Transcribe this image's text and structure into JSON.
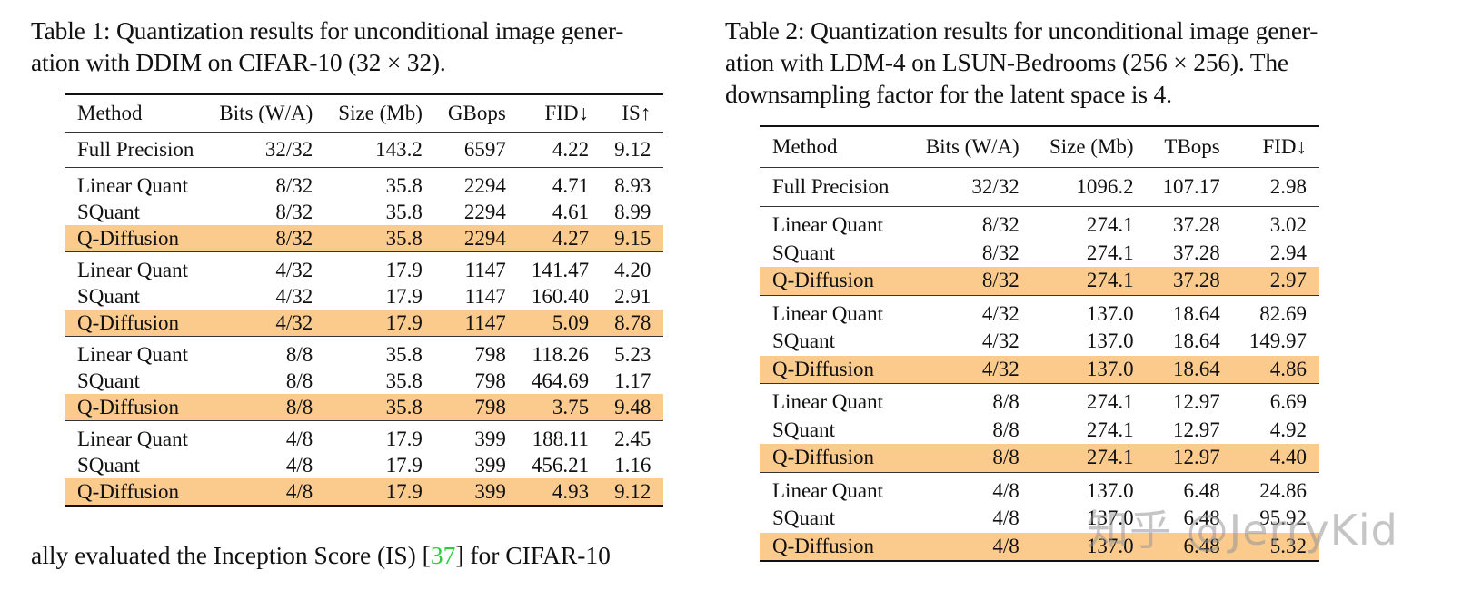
{
  "table1": {
    "caption_lines": [
      "Table 1: Quantization results for unconditional image gener-",
      "ation with DDIM on CIFAR-10 (32 × 32)."
    ],
    "headers": [
      "Method",
      "Bits (W/A)",
      "Size (Mb)",
      "GBops",
      "FID↓",
      "IS↑"
    ],
    "full_precision": [
      "Full Precision",
      "32/32",
      "143.2",
      "6597",
      "4.22",
      "9.12"
    ],
    "groups": [
      [
        [
          "Linear Quant",
          "8/32",
          "35.8",
          "2294",
          "4.71",
          "8.93"
        ],
        [
          "SQuant",
          "8/32",
          "35.8",
          "2294",
          "4.61",
          "8.99"
        ],
        [
          "Q-Diffusion",
          "8/32",
          "35.8",
          "2294",
          "4.27",
          "9.15"
        ]
      ],
      [
        [
          "Linear Quant",
          "4/32",
          "17.9",
          "1147",
          "141.47",
          "4.20"
        ],
        [
          "SQuant",
          "4/32",
          "17.9",
          "1147",
          "160.40",
          "2.91"
        ],
        [
          "Q-Diffusion",
          "4/32",
          "17.9",
          "1147",
          "5.09",
          "8.78"
        ]
      ],
      [
        [
          "Linear Quant",
          "8/8",
          "35.8",
          "798",
          "118.26",
          "5.23"
        ],
        [
          "SQuant",
          "8/8",
          "35.8",
          "798",
          "464.69",
          "1.17"
        ],
        [
          "Q-Diffusion",
          "8/8",
          "35.8",
          "798",
          "3.75",
          "9.48"
        ]
      ],
      [
        [
          "Linear Quant",
          "4/8",
          "17.9",
          "399",
          "188.11",
          "2.45"
        ],
        [
          "SQuant",
          "4/8",
          "17.9",
          "399",
          "456.21",
          "1.16"
        ],
        [
          "Q-Diffusion",
          "4/8",
          "17.9",
          "399",
          "4.93",
          "9.12"
        ]
      ]
    ]
  },
  "table2": {
    "caption_lines": [
      "Table 2: Quantization results for unconditional image gener-",
      "ation with LDM-4 on LSUN-Bedrooms (256 × 256). The",
      "downsampling factor for the latent space is 4."
    ],
    "headers": [
      "Method",
      "Bits (W/A)",
      "Size (Mb)",
      "TBops",
      "FID↓"
    ],
    "full_precision": [
      "Full Precision",
      "32/32",
      "1096.2",
      "107.17",
      "2.98"
    ],
    "groups": [
      [
        [
          "Linear Quant",
          "8/32",
          "274.1",
          "37.28",
          "3.02"
        ],
        [
          "SQuant",
          "8/32",
          "274.1",
          "37.28",
          "2.94"
        ],
        [
          "Q-Diffusion",
          "8/32",
          "274.1",
          "37.28",
          "2.97"
        ]
      ],
      [
        [
          "Linear Quant",
          "4/32",
          "137.0",
          "18.64",
          "82.69"
        ],
        [
          "SQuant",
          "4/32",
          "137.0",
          "18.64",
          "149.97"
        ],
        [
          "Q-Diffusion",
          "4/32",
          "137.0",
          "18.64",
          "4.86"
        ]
      ],
      [
        [
          "Linear Quant",
          "8/8",
          "274.1",
          "12.97",
          "6.69"
        ],
        [
          "SQuant",
          "8/8",
          "274.1",
          "12.97",
          "4.92"
        ],
        [
          "Q-Diffusion",
          "8/8",
          "274.1",
          "12.97",
          "4.40"
        ]
      ],
      [
        [
          "Linear Quant",
          "4/8",
          "137.0",
          "6.48",
          "24.86"
        ],
        [
          "SQuant",
          "4/8",
          "137.0",
          "6.48",
          "95.92"
        ],
        [
          "Q-Diffusion",
          "4/8",
          "137.0",
          "6.48",
          "5.32"
        ]
      ]
    ]
  },
  "body_text": {
    "before_ref": "ally evaluated the Inception Score (IS) [",
    "ref": "37",
    "after_ref": "] for CIFAR-10"
  },
  "watermark": "知乎 @JerryKid",
  "colors": {
    "highlight_row": "#fbcb8e",
    "reference_link": "#2ecc40"
  }
}
